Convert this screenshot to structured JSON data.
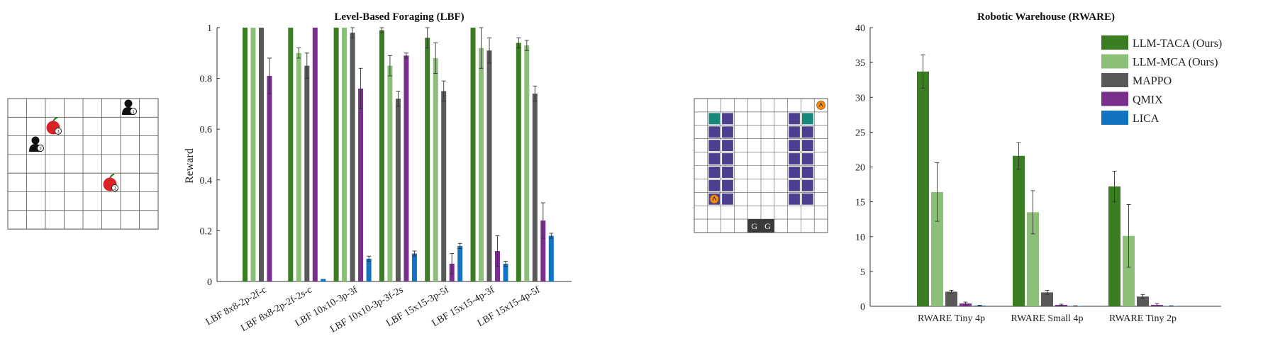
{
  "colors": {
    "LLM-TACA (Ours)": "#3a7d22",
    "LLM-MCA (Ours)": "#8cbf78",
    "MAPPO": "#595959",
    "QMIX": "#7a2f8f",
    "LICA": "#1273c2",
    "axis": "#333333",
    "grid": "#555555",
    "shelf": "#4d3f8f",
    "goal_shelf": "#17897a",
    "goal_cell": "#3a3a3a",
    "apple": "#d8232a",
    "agent": "#111111",
    "robot": "#f28c1a"
  },
  "lbf_env": {
    "agents": [
      {
        "level": "1"
      },
      {
        "level": "2"
      }
    ],
    "food": [
      {
        "level": "3"
      },
      {
        "level": "3"
      }
    ]
  },
  "rware_env": {
    "goal_labels": [
      "G",
      "G"
    ]
  },
  "chart_data": [
    {
      "type": "bar",
      "title": "Level-Based Foraging (LBF)",
      "xlabel": "",
      "ylabel": "Reward",
      "ylim": [
        0,
        1
      ],
      "yticks": [
        "0",
        "0.2",
        "0.4",
        "0.6",
        "0.8",
        "1"
      ],
      "categories": [
        "LBF 8x8-2p-2f-c",
        "LBF 8x8-2p-2f-2s-c",
        "LBF 10x10-3p-3f",
        "LBF 10x10-3p-3f-2s",
        "LBF 15x15-3p-5f",
        "LBF 15x15-4p-3f",
        "LBF 15x15-4p-5f"
      ],
      "series": [
        {
          "name": "LLM-TACA (Ours)",
          "values": [
            1.0,
            1.0,
            1.0,
            0.99,
            0.96,
            1.0,
            0.94
          ],
          "err": [
            0,
            0,
            0,
            0.01,
            0.04,
            0,
            0.02
          ]
        },
        {
          "name": "LLM-MCA (Ours)",
          "values": [
            1.0,
            0.9,
            1.0,
            0.85,
            0.88,
            0.92,
            0.93
          ],
          "err": [
            0,
            0.02,
            0,
            0.04,
            0.06,
            0.08,
            0.02
          ]
        },
        {
          "name": "MAPPO",
          "values": [
            1.0,
            0.85,
            0.98,
            0.72,
            0.75,
            0.91,
            0.74
          ],
          "err": [
            0,
            0.05,
            0.02,
            0.03,
            0.04,
            0.05,
            0.03
          ]
        },
        {
          "name": "QMIX",
          "values": [
            0.81,
            1.0,
            0.76,
            0.89,
            0.07,
            0.12,
            0.24
          ],
          "err": [
            0.07,
            0,
            0.08,
            0.01,
            0.04,
            0.06,
            0.07
          ]
        },
        {
          "name": "LICA",
          "values": [
            0.0,
            0.01,
            0.09,
            0.11,
            0.14,
            0.07,
            0.18
          ],
          "err": [
            0,
            0,
            0.01,
            0.01,
            0.01,
            0.01,
            0.01
          ]
        }
      ],
      "grid": false
    },
    {
      "type": "bar",
      "title": "Robotic Warehouse (RWARE)",
      "xlabel": "",
      "ylabel": "",
      "ylim": [
        0,
        40
      ],
      "yticks": [
        "0",
        "5",
        "10",
        "15",
        "20",
        "25",
        "30",
        "35",
        "40"
      ],
      "categories": [
        "RWARE Tiny 4p",
        "RWARE Small 4p",
        "RWARE Tiny 2p"
      ],
      "series": [
        {
          "name": "LLM-TACA (Ours)",
          "values": [
            33.7,
            21.6,
            17.2
          ],
          "err": [
            2.4,
            1.9,
            2.2
          ]
        },
        {
          "name": "LLM-MCA (Ours)",
          "values": [
            16.4,
            13.5,
            10.1
          ],
          "err": [
            4.2,
            3.1,
            4.5
          ]
        },
        {
          "name": "MAPPO",
          "values": [
            2.1,
            2.0,
            1.4
          ],
          "err": [
            0.2,
            0.3,
            0.3
          ]
        },
        {
          "name": "QMIX",
          "values": [
            0.4,
            0.2,
            0.2
          ],
          "err": [
            0.2,
            0.1,
            0.2
          ]
        },
        {
          "name": "LICA",
          "values": [
            0.1,
            0.05,
            0.05
          ],
          "err": [
            0.05,
            0.02,
            0.02
          ]
        }
      ],
      "legend": "top-right",
      "grid": false
    }
  ]
}
